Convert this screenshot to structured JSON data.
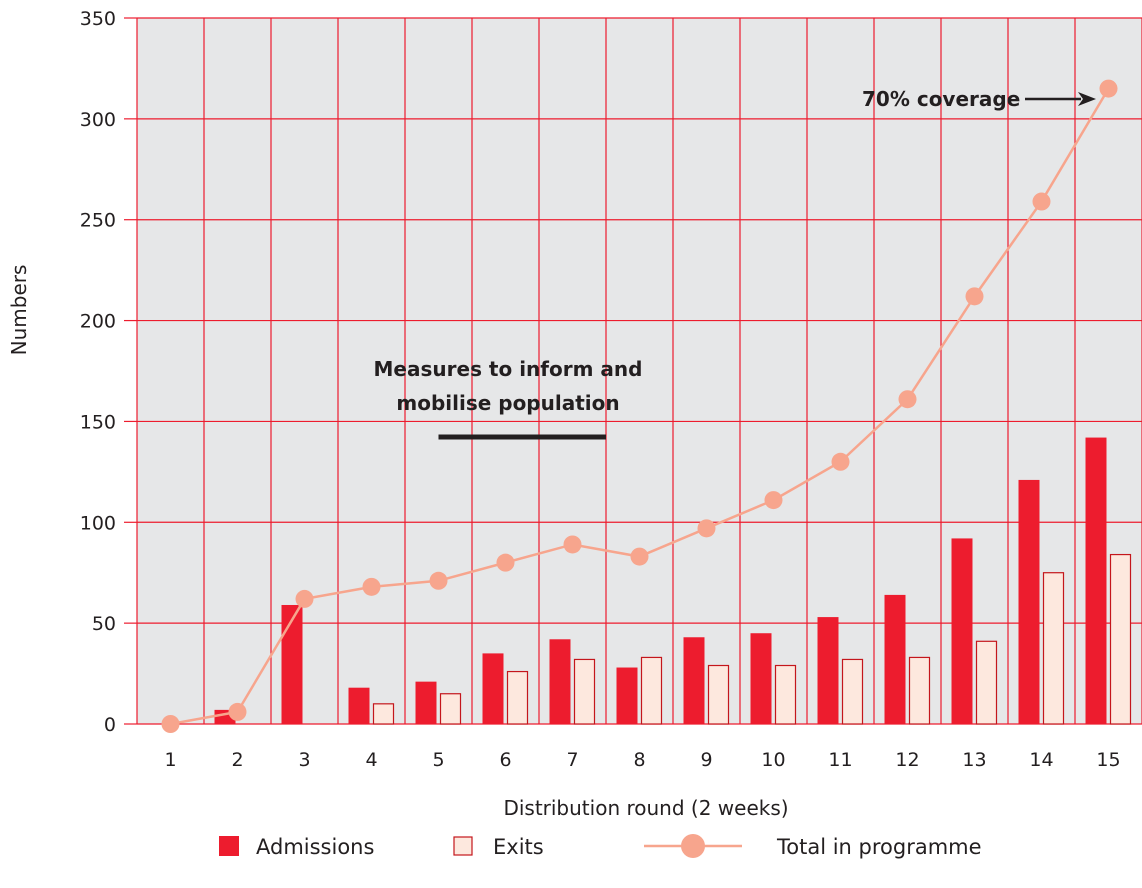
{
  "chart_data": {
    "type": "bar",
    "categories": [
      "1",
      "2",
      "3",
      "4",
      "5",
      "6",
      "7",
      "8",
      "9",
      "10",
      "11",
      "12",
      "13",
      "14",
      "15"
    ],
    "series": [
      {
        "name": "Admissions",
        "type": "bar",
        "color": "#ed1c2e",
        "values": [
          0,
          7,
          59,
          18,
          21,
          35,
          42,
          28,
          43,
          45,
          53,
          64,
          92,
          121,
          142
        ]
      },
      {
        "name": "Exits",
        "type": "bar",
        "color": "#fde8de",
        "values": [
          0,
          0,
          0,
          10,
          15,
          26,
          32,
          33,
          29,
          29,
          32,
          33,
          41,
          75,
          84
        ]
      },
      {
        "name": "Total in programme",
        "type": "line",
        "color": "#f7a58d",
        "values": [
          0,
          6,
          62,
          68,
          71,
          80,
          89,
          83,
          97,
          111,
          130,
          161,
          212,
          259,
          315
        ]
      }
    ],
    "xlabel": "Distribution round (2 weeks)",
    "ylabel": "Numbers",
    "ylim": [
      0,
      350
    ],
    "yticks": [
      0,
      50,
      100,
      150,
      200,
      250,
      300,
      350
    ],
    "grid": true,
    "legend_position": "bottom",
    "annotations": {
      "measures_line1": "Measures to inform and",
      "measures_line2": "mobilise population",
      "measures_span": [
        5,
        7.5
      ],
      "coverage": "70% coverage"
    },
    "colors": {
      "plot_bg": "#e6e7e8",
      "grid": "#ed1c2e",
      "bar_outline": "#c4161c"
    }
  }
}
